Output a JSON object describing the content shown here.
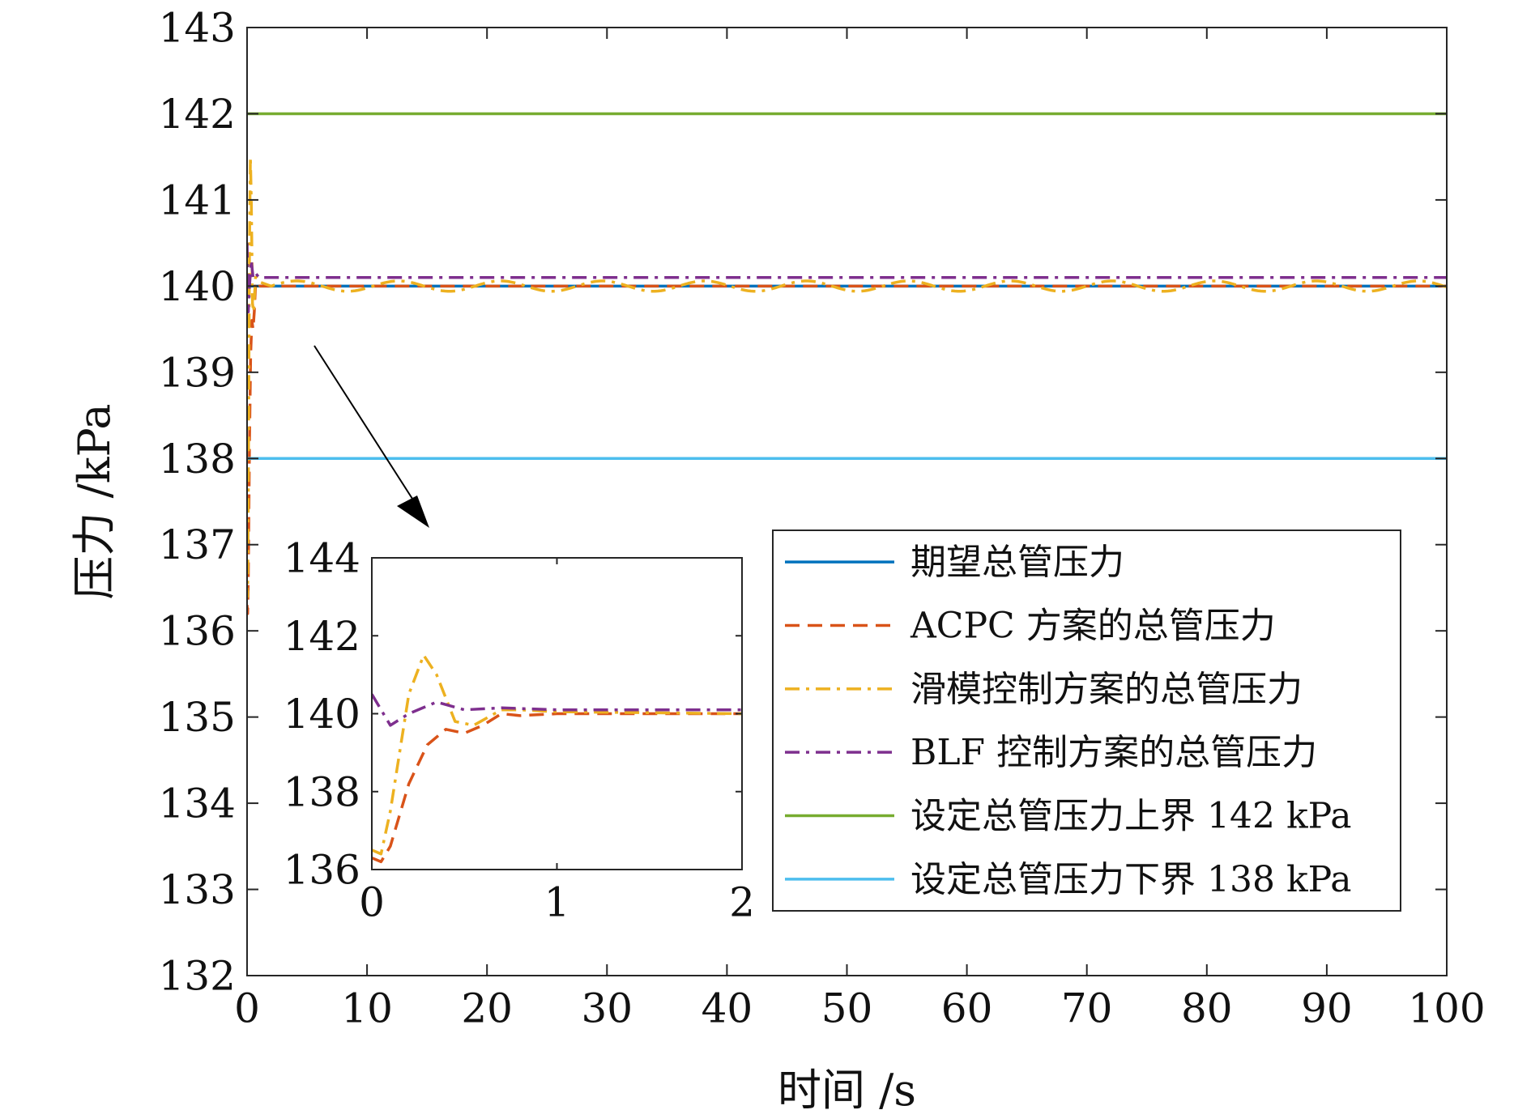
{
  "chart_data": {
    "type": "line",
    "xlabel": "时间 /s",
    "ylabel": "压力 /kPa",
    "xlim": [
      0,
      100
    ],
    "ylim": [
      132,
      143
    ],
    "xticks": [
      0,
      10,
      20,
      30,
      40,
      50,
      60,
      70,
      80,
      90,
      100
    ],
    "yticks": [
      132,
      133,
      134,
      135,
      136,
      137,
      138,
      139,
      140,
      141,
      142,
      143
    ],
    "grid": false,
    "legend_position": "bottom-right",
    "series": [
      {
        "name": "期望总管压力",
        "color": "#0072BD",
        "style": "solid",
        "x": [
          0,
          100
        ],
        "y": [
          140,
          140
        ]
      },
      {
        "name": "ACPC 方案的总管压力",
        "color": "#D95319",
        "style": "dashed",
        "x": [
          0,
          0.05,
          0.1,
          0.2,
          0.3,
          0.4,
          0.5,
          0.6,
          0.7,
          0.8,
          1.0,
          2.0,
          100
        ],
        "y": [
          136.3,
          136.2,
          136.6,
          138.2,
          139.2,
          139.6,
          139.5,
          139.7,
          140.0,
          139.95,
          140.0,
          140.0,
          140.0
        ]
      },
      {
        "name": "滑模控制方案的总管压力",
        "color": "#EDB120",
        "style": "dashdot",
        "x": [
          0,
          0.05,
          0.1,
          0.2,
          0.28,
          0.35,
          0.45,
          0.55,
          0.7,
          0.8,
          1.0,
          2.0
        ],
        "y": [
          136.5,
          136.4,
          137.5,
          140.5,
          141.5,
          141.0,
          139.8,
          139.7,
          140.1,
          140.1,
          140.05,
          140.0
        ],
        "steady_oscillation": {
          "center": 140.0,
          "amplitude": 0.06,
          "period_s": 8.5
        }
      },
      {
        "name": "BLF 控制方案的总管压力",
        "color": "#7E2F8E",
        "style": "dashdot",
        "x": [
          0,
          0.1,
          0.2,
          0.35,
          0.5,
          0.7,
          1.0,
          2.0,
          100
        ],
        "y": [
          140.5,
          139.7,
          140.0,
          140.3,
          140.1,
          140.15,
          140.1,
          140.1,
          140.1
        ]
      },
      {
        "name": "设定总管压力上界 142 kPa",
        "color": "#77AC30",
        "style": "solid",
        "x": [
          0,
          100
        ],
        "y": [
          142,
          142
        ]
      },
      {
        "name": "设定总管压力下界 138 kPa",
        "color": "#4DBEEE",
        "style": "solid",
        "x": [
          0,
          100
        ],
        "y": [
          138,
          138
        ]
      }
    ],
    "inset": {
      "xlim": [
        0,
        2
      ],
      "ylim": [
        136,
        144
      ],
      "xticks": [
        0,
        1,
        2
      ],
      "yticks": [
        136,
        138,
        140,
        142,
        144
      ]
    }
  }
}
